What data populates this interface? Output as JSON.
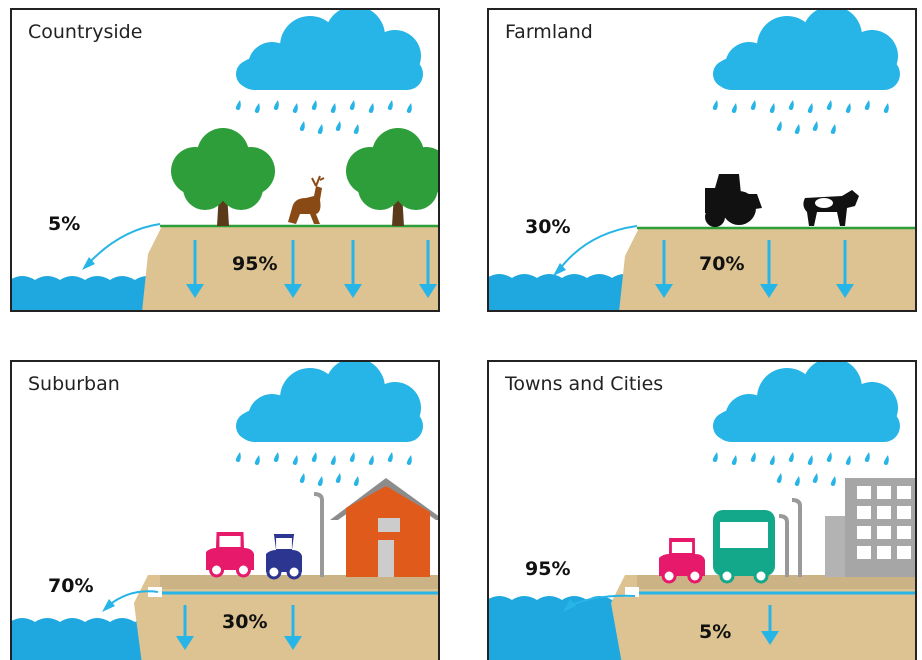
{
  "panels": [
    {
      "title": "Countryside",
      "runoff": "5%",
      "infiltration": "95%"
    },
    {
      "title": "Farmland",
      "runoff": "30%",
      "infiltration": "70%"
    },
    {
      "title": "Suburban",
      "runoff": "70%",
      "infiltration": "30%"
    },
    {
      "title": "Towns and Cities",
      "runoff": "95%",
      "infiltration": "5%"
    }
  ]
}
